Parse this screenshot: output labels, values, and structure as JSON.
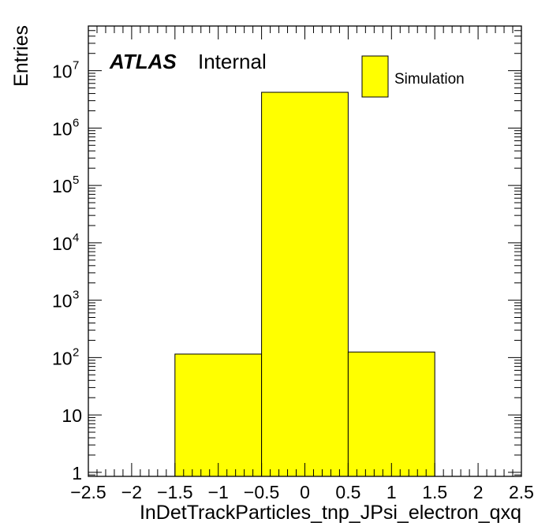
{
  "chart_data": {
    "type": "bar",
    "histogram": true,
    "xlabel": "InDetTrackParticles_tnp_JPsi_electron_qxq",
    "ylabel": "Entries",
    "xlim": [
      -2.5,
      2.5
    ],
    "ylim": [
      0.85,
      60000000
    ],
    "yscale": "log",
    "bins": [
      {
        "x0": -1.5,
        "x1": -0.5,
        "value": 115
      },
      {
        "x0": -0.5,
        "x1": 0.5,
        "value": 4200000
      },
      {
        "x0": 0.5,
        "x1": 1.5,
        "value": 125
      }
    ],
    "fill_color": "#ffff00",
    "x_ticks": [
      -2.5,
      -2,
      -1.5,
      -1,
      -0.5,
      0,
      0.5,
      1,
      1.5,
      2,
      2.5
    ],
    "x_tick_labels": [
      "−2.5",
      "−2",
      "−1.5",
      "−1",
      "−0.5",
      "0",
      "0.5",
      "1",
      "1.5",
      "2",
      "2.5"
    ],
    "y_ticks": [
      {
        "value": 1,
        "base": "1",
        "exp": ""
      },
      {
        "value": 10,
        "base": "10",
        "exp": ""
      },
      {
        "value": 100,
        "base": "10",
        "exp": "2"
      },
      {
        "value": 1000,
        "base": "10",
        "exp": "3"
      },
      {
        "value": 10000,
        "base": "10",
        "exp": "4"
      },
      {
        "value": 100000,
        "base": "10",
        "exp": "5"
      },
      {
        "value": 1000000,
        "base": "10",
        "exp": "6"
      },
      {
        "value": 10000000,
        "base": "10",
        "exp": "7"
      }
    ],
    "legend": {
      "position": "top-right",
      "entries": [
        {
          "name": "Simulation",
          "color": "#ffff00"
        }
      ]
    },
    "grid": false
  },
  "label": {
    "atlas": "ATLAS",
    "status": "Internal"
  }
}
